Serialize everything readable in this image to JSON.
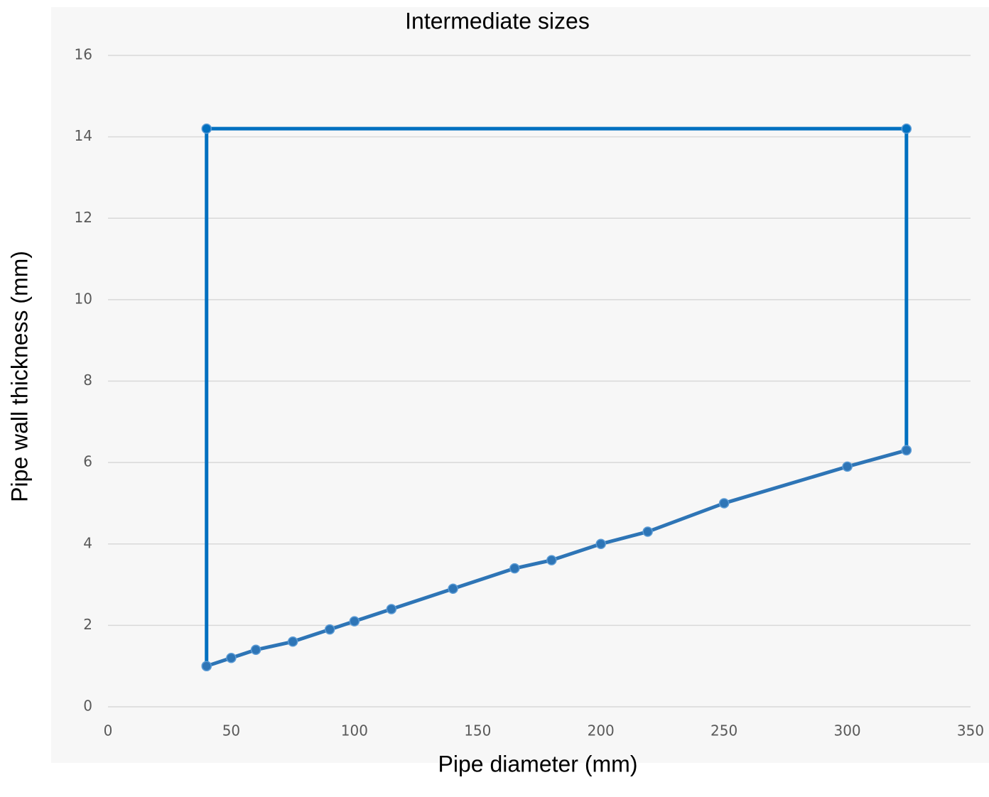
{
  "chart_data": {
    "type": "line",
    "title": "Intermediate sizes",
    "xlabel": "Pipe diameter (mm)",
    "ylabel": "Pipe wall thickness (mm)",
    "series": [
      {
        "color": "#0070c0",
        "x": [
          40,
          40,
          324,
          324
        ],
        "values": [
          1.0,
          14.2,
          14.2,
          6.3
        ]
      },
      {
        "color": "#2e75b6",
        "x": [
          40,
          50,
          60,
          75,
          90,
          100,
          115,
          140,
          165,
          180,
          200,
          219,
          250,
          300,
          324
        ],
        "values": [
          1.0,
          1.2,
          1.4,
          1.6,
          1.9,
          2.1,
          2.4,
          2.9,
          3.4,
          3.6,
          4.0,
          4.3,
          5.0,
          5.9,
          6.3
        ]
      }
    ],
    "xlim": [
      0,
      350
    ],
    "xticks": [
      0,
      50,
      100,
      150,
      200,
      250,
      300,
      350
    ],
    "ylim": [
      0,
      16
    ],
    "yticks": [
      0,
      2,
      4,
      6,
      8,
      10,
      12,
      14,
      16
    ],
    "grid": true
  }
}
